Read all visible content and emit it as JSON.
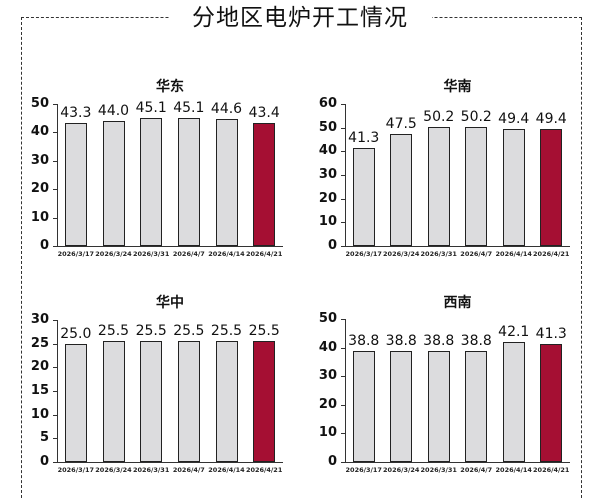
{
  "page": {
    "title": "分地区电炉开工情况"
  },
  "style": {
    "bar_color": "#dcdcde",
    "highlight_color": "#a50f33",
    "axis_color": "#333333"
  },
  "chart_data": [
    {
      "type": "bar",
      "title": "华东",
      "categories": [
        "2026/3/17",
        "2026/3/24",
        "2026/3/31",
        "2026/4/7",
        "2026/4/14",
        "2026/4/21"
      ],
      "values": [
        43.3,
        44.0,
        45.1,
        45.1,
        44.6,
        43.4
      ],
      "value_labels": [
        "43.3",
        "44.0",
        "45.1",
        "45.1",
        "44.6",
        "43.4"
      ],
      "yticks": [
        0,
        10,
        20,
        30,
        40,
        50
      ],
      "ylim": [
        0,
        50
      ],
      "highlight_index": 5,
      "xlabel": "",
      "ylabel": "",
      "grid": false,
      "legend": "none"
    },
    {
      "type": "bar",
      "title": "华南",
      "categories": [
        "2026/3/17",
        "2026/3/24",
        "2026/3/31",
        "2026/4/7",
        "2026/4/14",
        "2026/4/21"
      ],
      "values": [
        41.3,
        47.5,
        50.2,
        50.2,
        49.4,
        49.4
      ],
      "value_labels": [
        "41.3",
        "47.5",
        "50.2",
        "50.2",
        "49.4",
        "49.4"
      ],
      "yticks": [
        0,
        10,
        20,
        30,
        40,
        50,
        60
      ],
      "ylim": [
        0,
        60
      ],
      "highlight_index": 5,
      "xlabel": "",
      "ylabel": "",
      "grid": false,
      "legend": "none"
    },
    {
      "type": "bar",
      "title": "华中",
      "categories": [
        "2026/3/17",
        "2026/3/24",
        "2026/3/31",
        "2026/4/7",
        "2026/4/14",
        "2026/4/21"
      ],
      "values": [
        25.0,
        25.5,
        25.5,
        25.5,
        25.5,
        25.5
      ],
      "value_labels": [
        "25.0",
        "25.5",
        "25.5",
        "25.5",
        "25.5",
        "25.5"
      ],
      "yticks": [
        0,
        5,
        10,
        15,
        20,
        25,
        30
      ],
      "ylim": [
        0,
        30
      ],
      "highlight_index": 5,
      "xlabel": "",
      "ylabel": "",
      "grid": false,
      "legend": "none"
    },
    {
      "type": "bar",
      "title": "西南",
      "categories": [
        "2026/3/17",
        "2026/3/24",
        "2026/3/31",
        "2026/4/7",
        "2026/4/14",
        "2026/4/21"
      ],
      "values": [
        38.8,
        38.8,
        38.8,
        38.8,
        42.1,
        41.3
      ],
      "value_labels": [
        "38.8",
        "38.8",
        "38.8",
        "38.8",
        "42.1",
        "41.3"
      ],
      "yticks": [
        0,
        10,
        20,
        30,
        40,
        50
      ],
      "ylim": [
        0,
        50
      ],
      "highlight_index": 5,
      "xlabel": "",
      "ylabel": "",
      "grid": false,
      "legend": "none"
    }
  ]
}
